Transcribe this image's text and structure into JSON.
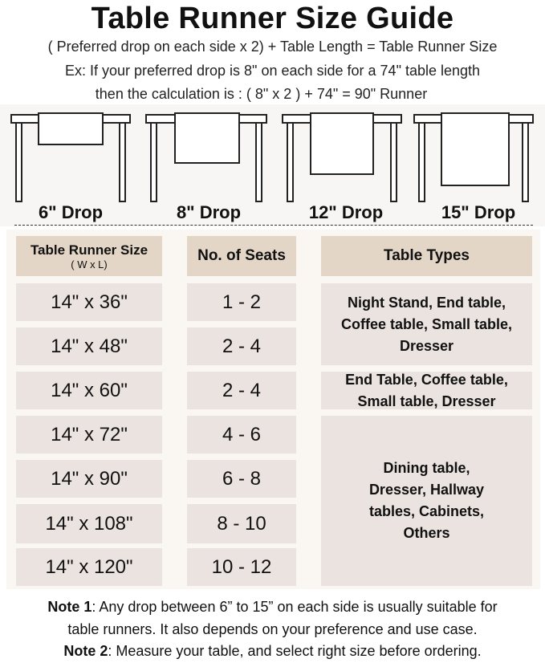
{
  "title": "Table Runner Size Guide",
  "formula": "( Preferred drop on each side x 2) + Table Length = Table Runner Size",
  "example_line1": "Ex: If your preferred drop is 8\" on each side for a 74\" table length",
  "example_line2": "then the calculation is : ( 8\" x 2 ) + 74\" = 90\" Runner",
  "drops": [
    "6\" Drop",
    "8\" Drop",
    "12\" Drop",
    "15\" Drop"
  ],
  "table": {
    "headers": {
      "size": "Table Runner Size",
      "size_sub": "( W x L)",
      "seats": "No. of Seats",
      "types": "Table Types"
    },
    "sizes": [
      "14\" x 36\"",
      "14\" x 48\"",
      "14\" x 60\"",
      "14\" x 72\"",
      "14\" x 90\"",
      "14\" x 108\"",
      "14\" x 120\""
    ],
    "seats": [
      "1 - 2",
      "2 - 4",
      "2 - 4",
      "4 - 6",
      "6 - 8",
      "8 - 10",
      "10 - 12"
    ],
    "types": [
      "Night Stand, End table, Coffee table, Small table, Dresser",
      "End Table, Coffee table, Small table, Dresser",
      "Dining table, Dresser, Hallway tables, Cabinets, Others"
    ]
  },
  "notes": {
    "n1_label": "Note 1",
    "n1_text": ": Any drop between 6” to 15” on each side is usually suitable for",
    "n1_text2": "table runners. It also depends on your preference and use case.",
    "n2_label": "Note 2",
    "n2_text": ": Measure your table, and select right size before ordering."
  },
  "colors": {
    "header_cell": "#e3d6c7",
    "body_cell": "#ebe3df",
    "panel": "#faf6f2"
  }
}
